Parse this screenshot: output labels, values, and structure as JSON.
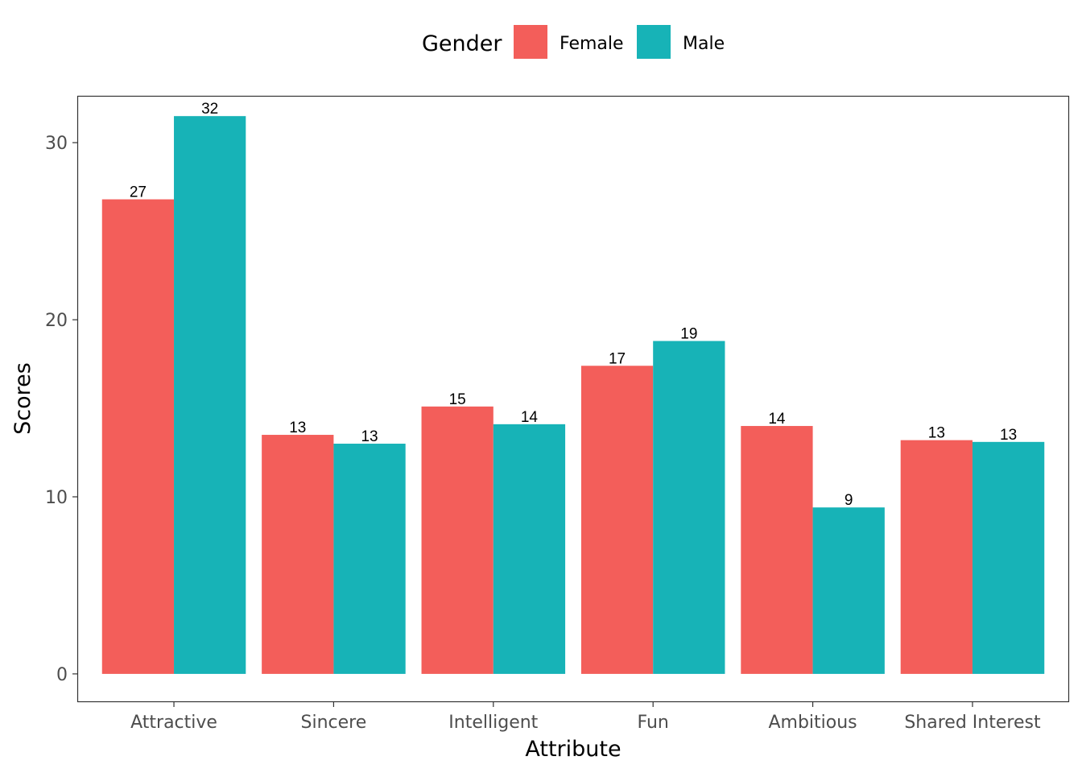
{
  "chart_data": {
    "type": "bar",
    "categories": [
      "Attractive",
      "Sincere",
      "Intelligent",
      "Fun",
      "Ambitious",
      "Shared Interest"
    ],
    "series": [
      {
        "name": "Female",
        "color": "#F35E5A",
        "values": [
          26.8,
          13.5,
          15.1,
          17.4,
          14.0,
          13.2
        ],
        "labels": [
          "27",
          "13",
          "15",
          "17",
          "14",
          "13"
        ]
      },
      {
        "name": "Male",
        "color": "#17B3B7",
        "values": [
          31.5,
          13.0,
          14.1,
          18.8,
          9.4,
          13.1
        ],
        "labels": [
          "32",
          "13",
          "14",
          "19",
          "9",
          "13"
        ]
      }
    ],
    "xlabel": "Attribute",
    "ylabel": "Scores",
    "ylim": [
      -1.55,
      32.6
    ],
    "yticks": [
      0,
      10,
      20,
      30
    ],
    "legend": {
      "title": "Gender",
      "position": "top"
    },
    "grid": false
  }
}
